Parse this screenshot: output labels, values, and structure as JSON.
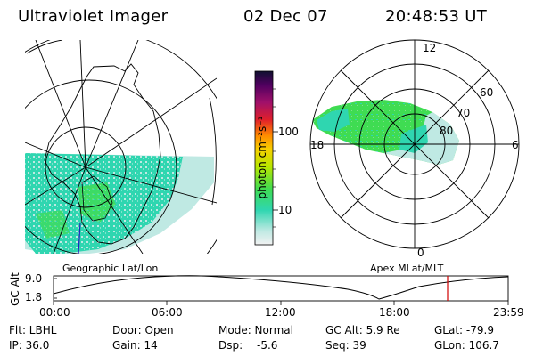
{
  "header": {
    "title": "Ultraviolet Imager",
    "date": "02 Dec 07",
    "time": "20:48:53 UT"
  },
  "left_panel": {
    "caption": "Geographic Lat/Lon"
  },
  "right_panel": {
    "caption": "Apex MLat/MLT",
    "mlt_labels": [
      "12",
      "18",
      "6",
      "0"
    ],
    "lat_labels": [
      "60",
      "70",
      "80"
    ]
  },
  "colorbar": {
    "unit_label": "photon cm⁻²s⁻¹",
    "tick_labels": [
      "100",
      "10"
    ]
  },
  "altitude_plot": {
    "ylabel": "GC Alt",
    "y_ticks": [
      "9.0",
      "1.8"
    ],
    "x_ticks": [
      "00:00",
      "06:00",
      "12:00",
      "18:00",
      "23:59"
    ],
    "marker_color": "#d00000"
  },
  "info": {
    "row1": {
      "flt": "Flt: LBHL",
      "door": "Door: Open",
      "mode": "Mode: Normal",
      "gc_alt": "GC Alt: 5.9 Re",
      "glat": "GLat: -79.9"
    },
    "row2": {
      "ip": "IP: 36.0",
      "gain": "Gain: 14",
      "dsp_label": "Dsp:",
      "dsp_value": "-5.6",
      "seq": "Seq: 39",
      "glon": "GLon: 106.7"
    }
  },
  "colors": {
    "aurora_main": "#2fd6b0",
    "aurora_green": "#3fdc52",
    "aurora_light": "#bfe9e3"
  }
}
